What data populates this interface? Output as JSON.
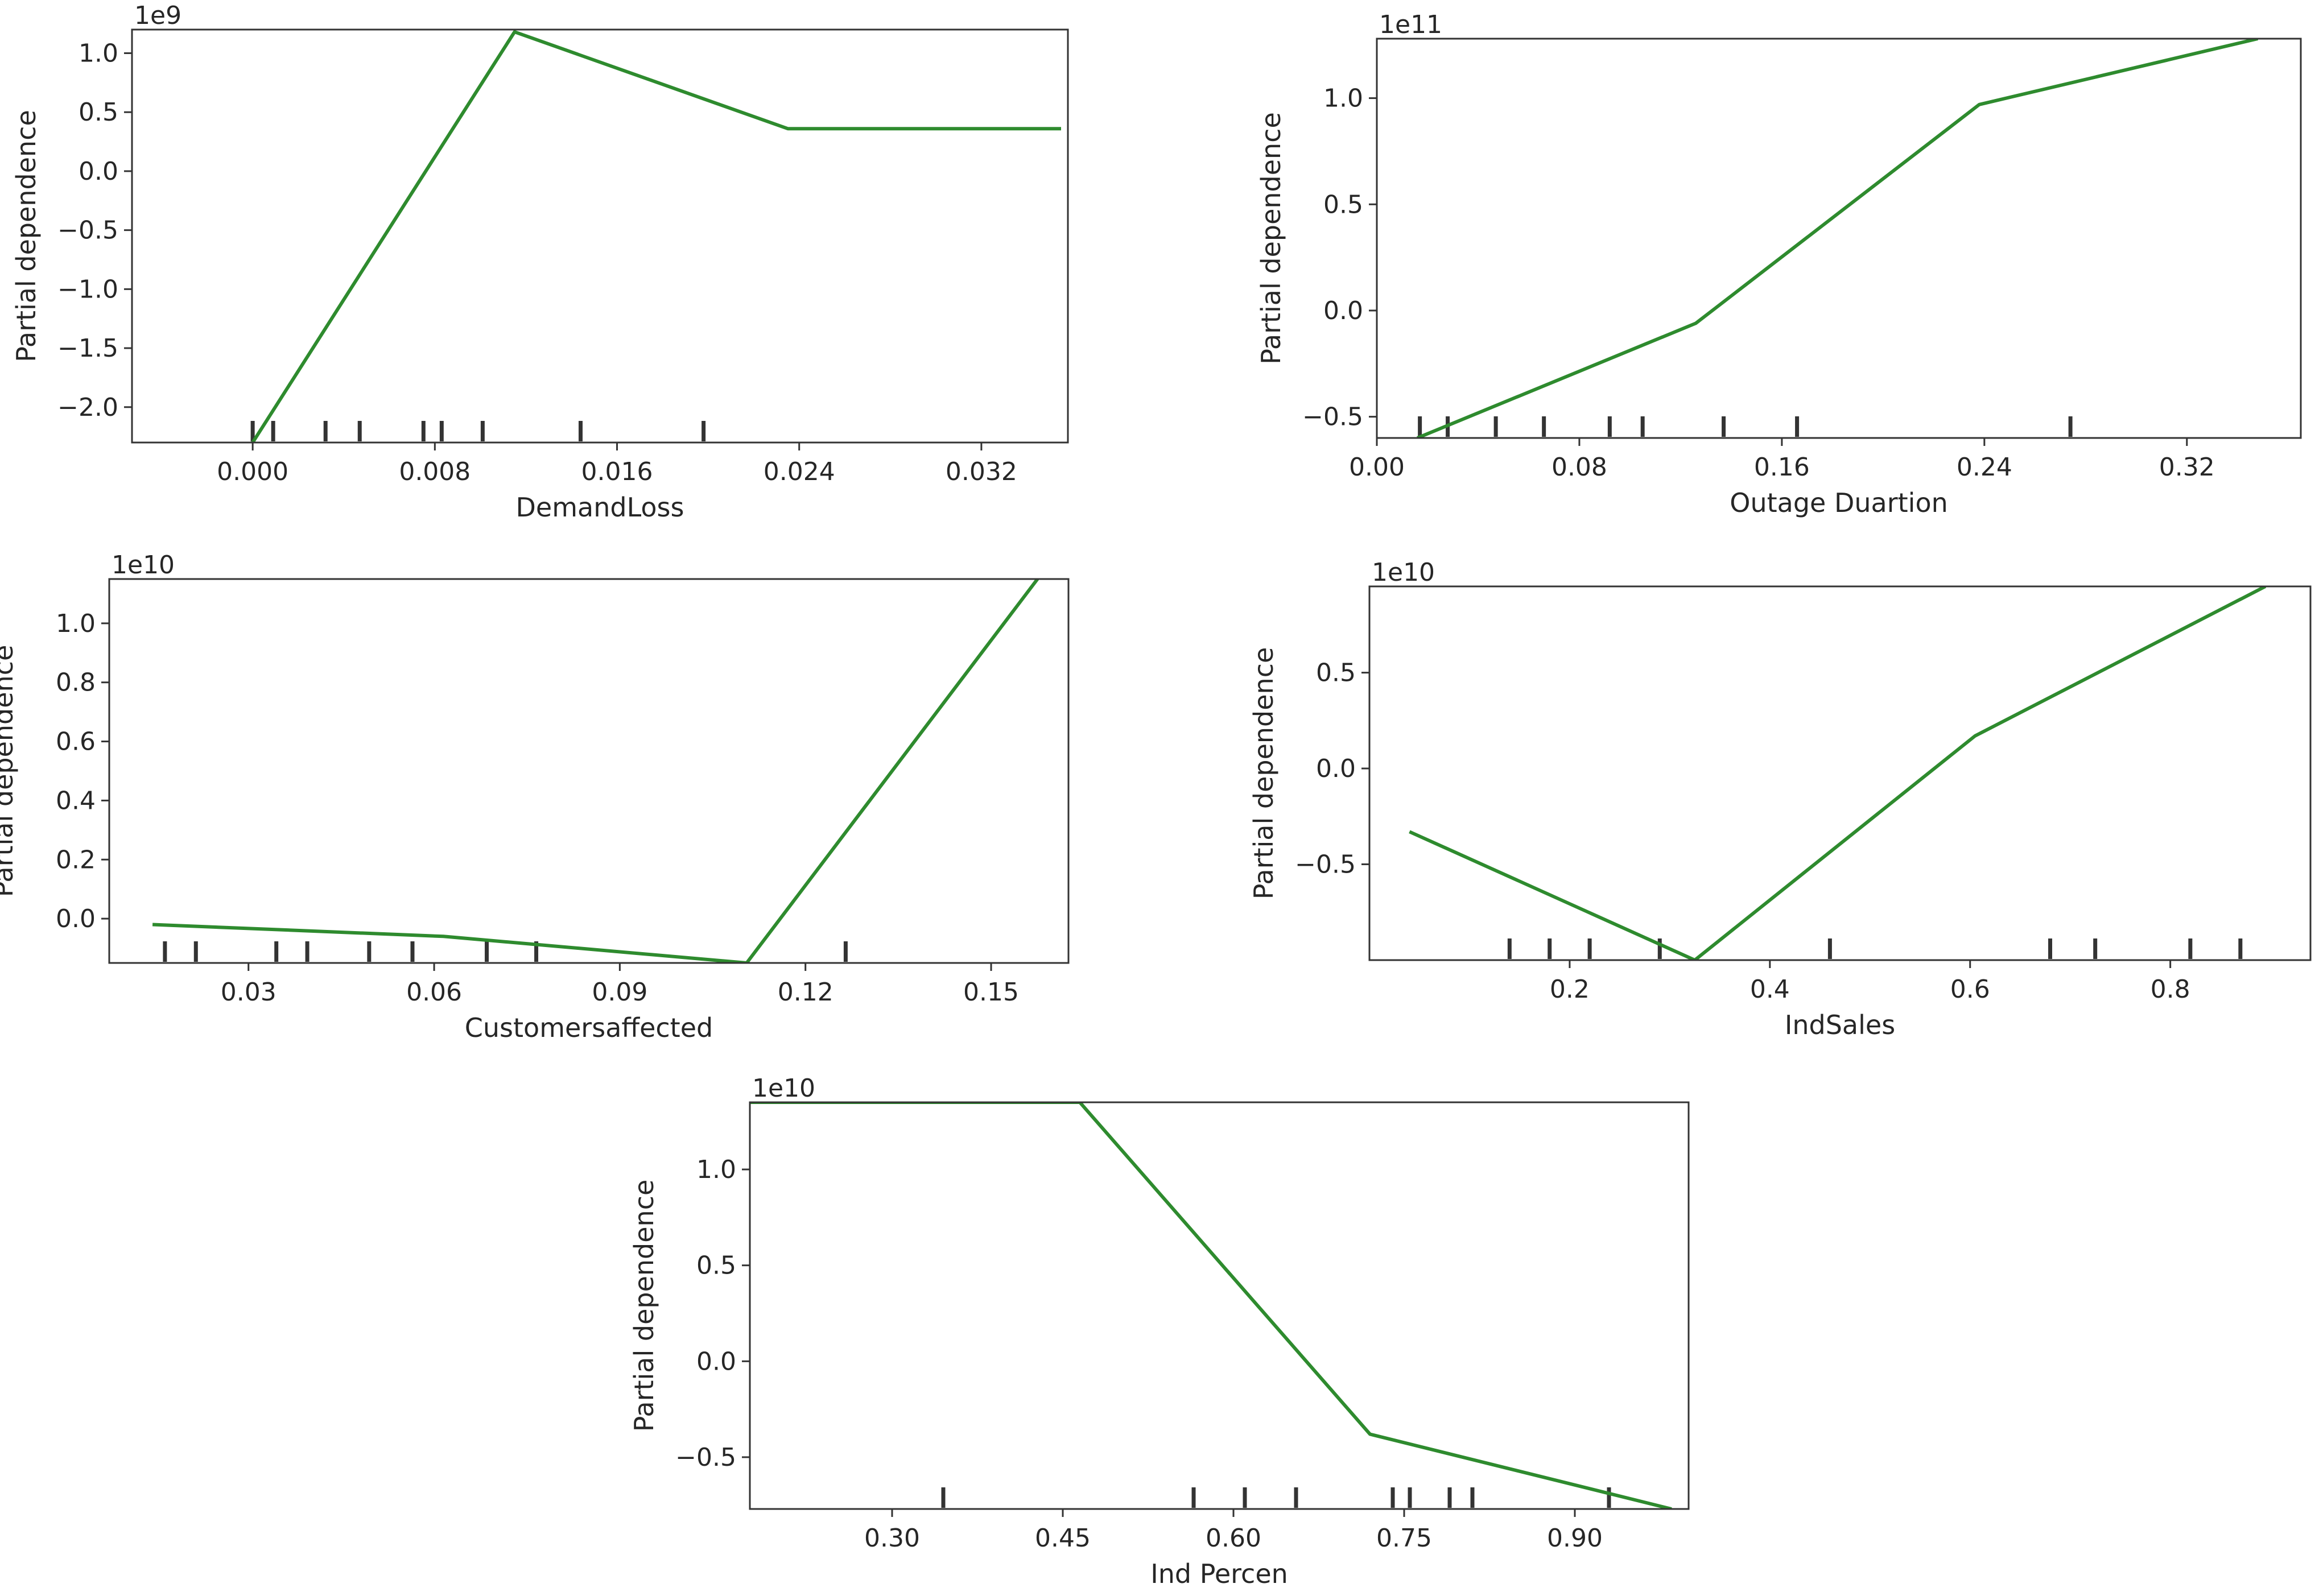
{
  "colors": {
    "line": "#2e8b2e",
    "axis": "#333333",
    "rug": "#333333",
    "background": "#ffffff"
  },
  "chart_data": [
    {
      "type": "line",
      "name": "demandloss",
      "xlabel": "DemandLoss",
      "ylabel": "Partial dependence",
      "y_exponent": "1e9",
      "xlim": [
        -0.0053,
        0.0358
      ],
      "ylim": [
        -2.3,
        1.2
      ],
      "xticks": [
        0.0,
        0.008,
        0.016,
        0.024,
        0.032
      ],
      "xtick_labels": [
        "0.000",
        "0.008",
        "0.016",
        "0.024",
        "0.032"
      ],
      "yticks": [
        -2.0,
        -1.5,
        -1.0,
        -0.5,
        0.0,
        0.5,
        1.0
      ],
      "ytick_labels": [
        "−2.0",
        "−1.5",
        "−1.0",
        "−0.5",
        "0.0",
        "0.5",
        "1.0"
      ],
      "x": [
        0.0,
        0.0115,
        0.0235,
        0.0355
      ],
      "y": [
        -2.3,
        1.18,
        0.36,
        0.36
      ],
      "rug": [
        0.0,
        0.0009,
        0.0032,
        0.0047,
        0.0075,
        0.0083,
        0.0101,
        0.0144,
        0.0198
      ]
    },
    {
      "type": "line",
      "name": "outage-duration",
      "xlabel": "Outage Duartion",
      "ylabel": "Partial dependence",
      "y_exponent": "1e11",
      "xlim": [
        0.0,
        0.365
      ],
      "ylim": [
        -0.6,
        1.28
      ],
      "xticks": [
        0.0,
        0.08,
        0.16,
        0.24,
        0.32
      ],
      "xtick_labels": [
        "0.00",
        "0.08",
        "0.16",
        "0.24",
        "0.32"
      ],
      "yticks": [
        -0.5,
        0.0,
        0.5,
        1.0
      ],
      "ytick_labels": [
        "−0.5",
        "0.0",
        "0.5",
        "1.0"
      ],
      "x": [
        0.016,
        0.126,
        0.238,
        0.348
      ],
      "y": [
        -0.6,
        -0.06,
        0.97,
        1.28
      ],
      "rug": [
        0.017,
        0.028,
        0.047,
        0.066,
        0.092,
        0.105,
        0.137,
        0.166,
        0.274
      ]
    },
    {
      "type": "line",
      "name": "customersaffected",
      "xlabel": "Customersaffected",
      "ylabel": "Partial dependence",
      "y_exponent": "1e10",
      "xlim": [
        0.0075,
        0.1625
      ],
      "ylim": [
        -0.15,
        1.15
      ],
      "xticks": [
        0.03,
        0.06,
        0.09,
        0.12,
        0.15
      ],
      "xtick_labels": [
        "0.03",
        "0.06",
        "0.09",
        "0.12",
        "0.15"
      ],
      "yticks": [
        0.0,
        0.2,
        0.4,
        0.6,
        0.8,
        1.0
      ],
      "ytick_labels": [
        "0.0",
        "0.2",
        "0.4",
        "0.6",
        "0.8",
        "1.0"
      ],
      "x": [
        0.0145,
        0.0615,
        0.1105,
        0.1575
      ],
      "y": [
        -0.02,
        -0.06,
        -0.15,
        1.15
      ],
      "rug": [
        0.0165,
        0.0215,
        0.0345,
        0.0395,
        0.0495,
        0.0565,
        0.0685,
        0.0765,
        0.1265
      ]
    },
    {
      "type": "line",
      "name": "indsales",
      "xlabel": "IndSales",
      "ylabel": "Partial dependence",
      "y_exponent": "1e10",
      "xlim": [
        0.0,
        0.94
      ],
      "ylim": [
        -1.0,
        0.95
      ],
      "xticks": [
        0.2,
        0.4,
        0.6,
        0.8
      ],
      "xtick_labels": [
        "0.2",
        "0.4",
        "0.6",
        "0.8"
      ],
      "yticks": [
        -0.5,
        0.0,
        0.5
      ],
      "ytick_labels": [
        "−0.5",
        "0.0",
        "0.5"
      ],
      "x": [
        0.04,
        0.325,
        0.605,
        0.895
      ],
      "y": [
        -0.33,
        -1.0,
        0.17,
        0.95
      ],
      "rug": [
        0.14,
        0.18,
        0.22,
        0.29,
        0.46,
        0.68,
        0.725,
        0.82,
        0.87
      ]
    },
    {
      "type": "line",
      "name": "ind-percen",
      "xlabel": "Ind Percen",
      "ylabel": "Partial dependence",
      "y_exponent": "1e10",
      "xlim": [
        0.175,
        1.0
      ],
      "ylim": [
        -0.77,
        1.35
      ],
      "xticks": [
        0.3,
        0.45,
        0.6,
        0.75,
        0.9
      ],
      "xtick_labels": [
        "0.30",
        "0.45",
        "0.60",
        "0.75",
        "0.90"
      ],
      "yticks": [
        -0.5,
        0.0,
        0.5,
        1.0
      ],
      "ytick_labels": [
        "−0.5",
        "0.0",
        "0.5",
        "1.0"
      ],
      "x": [
        0.175,
        0.465,
        0.72,
        0.985
      ],
      "y": [
        1.35,
        1.35,
        -0.38,
        -0.77
      ],
      "rug": [
        0.345,
        0.565,
        0.61,
        0.655,
        0.74,
        0.755,
        0.79,
        0.81,
        0.93
      ]
    }
  ]
}
